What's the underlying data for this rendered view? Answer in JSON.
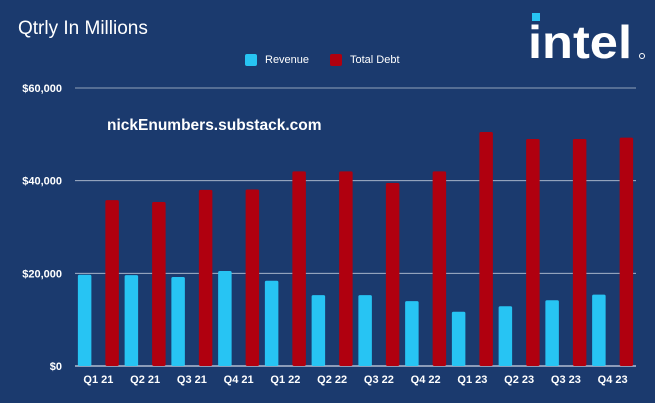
{
  "title": "Qtrly In Millions",
  "watermark": "nickEnumbers.substack.com",
  "logo_text": "intel",
  "colors": {
    "background": "#1b3a6e",
    "revenue": "#27c4f3",
    "debt": "#b0000f",
    "gridline": "#b9c4d6",
    "logo": "#ffffff",
    "logo_accent": "#27c4f3"
  },
  "chart_data": {
    "type": "bar",
    "title": "Qtrly In Millions",
    "categories": [
      "Q1 21",
      "Q2 21",
      "Q3 21",
      "Q4 21",
      "Q1 22",
      "Q2 22",
      "Q3 22",
      "Q4 22",
      "Q1 23",
      "Q2 23",
      "Q3 23",
      "Q4 23"
    ],
    "series": [
      {
        "name": "Revenue",
        "color": "#27c4f3",
        "values": [
          19700,
          19600,
          19200,
          20500,
          18400,
          15300,
          15300,
          14000,
          11700,
          12900,
          14200,
          15400
        ]
      },
      {
        "name": "Total Debt",
        "color": "#b0000f",
        "values": [
          35800,
          35400,
          38000,
          38100,
          42000,
          42000,
          39500,
          42000,
          50500,
          49000,
          49000,
          49300
        ]
      }
    ],
    "ylim": [
      0,
      60000
    ],
    "yticks": [
      0,
      20000,
      40000,
      60000
    ],
    "ytick_labels": [
      "$0",
      "$20,000",
      "$40,000",
      "$60,000"
    ],
    "xlabel": "",
    "ylabel": "",
    "grid": true,
    "legend_position": "top-center"
  }
}
